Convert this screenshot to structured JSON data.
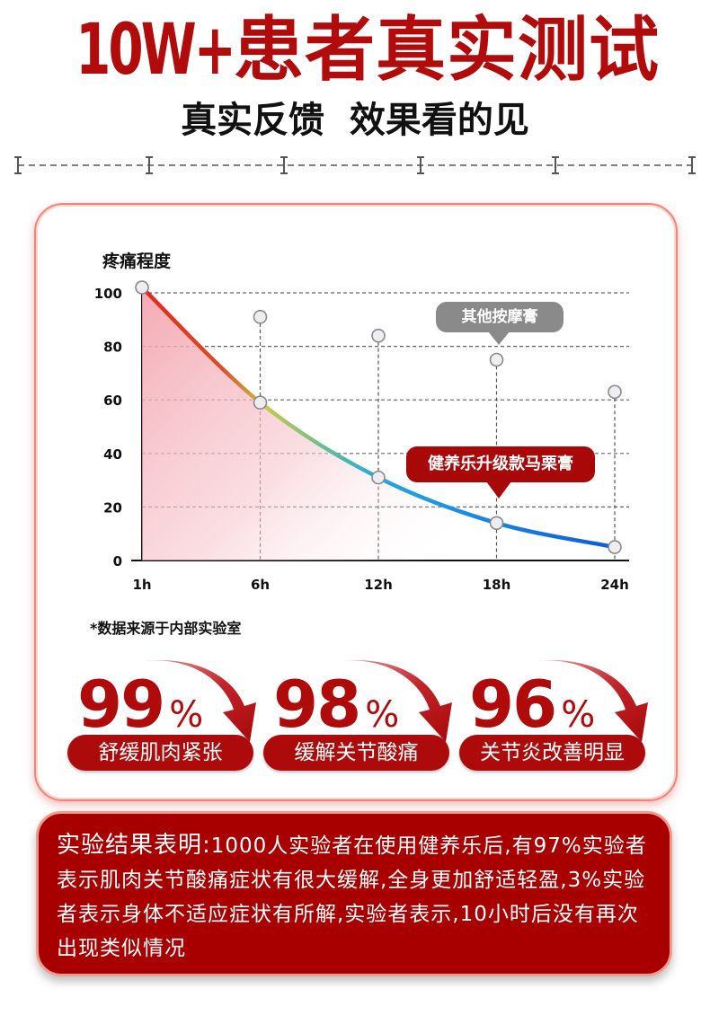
{
  "header": {
    "title_prefix": "10W+",
    "title_main": "患者真实测试",
    "subtitle": "真实反馈  效果看的见"
  },
  "chart_data": {
    "type": "line",
    "ylabel": "疼痛程度",
    "categories": [
      "1h",
      "6h",
      "12h",
      "18h",
      "24h"
    ],
    "ylim": [
      0,
      100
    ],
    "yticks": [
      0,
      20,
      40,
      60,
      80,
      100
    ],
    "grid": true,
    "series": [
      {
        "name": "健养乐升级款马栗膏",
        "values": [
          102,
          59,
          31,
          14,
          5
        ],
        "color": "gradient red-to-blue"
      },
      {
        "name": "其他按摩膏",
        "values": [
          null,
          91,
          84,
          75,
          63
        ],
        "color": "#8a8a8a"
      }
    ]
  },
  "note": "*数据来源于内部实验室",
  "stats": [
    {
      "value": "99",
      "unit": "%",
      "label": "舒缓肌肉紧张"
    },
    {
      "value": "98",
      "unit": "%",
      "label": "缓解关节酸痛"
    },
    {
      "value": "96",
      "unit": "%",
      "label": "关节炎改善明显"
    }
  ],
  "result": {
    "lead": "实验结果表明:",
    "body": "1000人实验者在使用健养乐后,有97%实验者表示肌肉关节酸痛症状有很大缓解,全身更加舒适轻盈,3%实验者表示身体不适应症状有所解,实验者表示,10小时后没有再次出现类似情况"
  },
  "colors": {
    "brand_red": "#b00b0b",
    "callout_gray": "#8a8a8a",
    "card_border": "#f08478"
  }
}
